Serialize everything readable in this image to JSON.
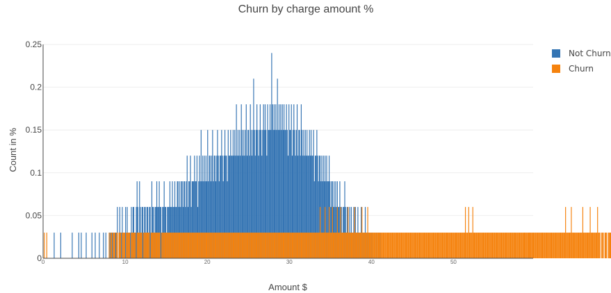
{
  "chart_data": {
    "type": "bar",
    "title": "Churn by charge amount %",
    "xlabel": "Amount $",
    "ylabel": "Count in %",
    "xlim": [
      0,
      59.7
    ],
    "ylim": [
      0,
      0.25
    ],
    "x_ticks": [
      "0",
      "10",
      "20",
      "30",
      "40",
      "50"
    ],
    "y_ticks": [
      "0",
      "0.05",
      "0.1",
      "0.15",
      "0.2",
      "0.25"
    ],
    "grid": true,
    "legend_position": "top-right",
    "bin_width": 0.1,
    "series": [
      {
        "name": "Not Churn",
        "color": "#3474b3",
        "start": 8.0,
        "values": [
          0.03,
          0.03,
          0,
          0.03,
          0.03,
          0.03,
          0,
          0.03,
          0.03,
          0.03,
          0.06,
          0,
          0.03,
          0.06,
          0.03,
          0.03,
          0.06,
          0.03,
          0,
          0.03,
          0.06,
          0.03,
          0.06,
          0.03,
          0,
          0.03,
          0.03,
          0.06,
          0.03,
          0.06,
          0.06,
          0.03,
          0.03,
          0.06,
          0.09,
          0.06,
          0.03,
          0.09,
          0.06,
          0.03,
          0.06,
          0.06,
          0.03,
          0.06,
          0.06,
          0.03,
          0.06,
          0.06,
          0.03,
          0.06,
          0.06,
          0.03,
          0.09,
          0.06,
          0.06,
          0.03,
          0.06,
          0.06,
          0.09,
          0.06,
          0.06,
          0.09,
          0.06,
          0.06,
          0.03,
          0.06,
          0.06,
          0.09,
          0.06,
          0.06,
          0.03,
          0.06,
          0.06,
          0.06,
          0.09,
          0.06,
          0.06,
          0.09,
          0.06,
          0.06,
          0.09,
          0.06,
          0.06,
          0.09,
          0.09,
          0.06,
          0.09,
          0.06,
          0.09,
          0.09,
          0.06,
          0.09,
          0.09,
          0.06,
          0.09,
          0.12,
          0.06,
          0.09,
          0.09,
          0.12,
          0.06,
          0.09,
          0.09,
          0.09,
          0.12,
          0.09,
          0.09,
          0.12,
          0.06,
          0.09,
          0.12,
          0.09,
          0.15,
          0.09,
          0.12,
          0.09,
          0.12,
          0.09,
          0.12,
          0.09,
          0.15,
          0.09,
          0.12,
          0.12,
          0.09,
          0.12,
          0.15,
          0.09,
          0.12,
          0.12,
          0.09,
          0.12,
          0.15,
          0.12,
          0.09,
          0.12,
          0.12,
          0.15,
          0.12,
          0.09,
          0.12,
          0.15,
          0.12,
          0.12,
          0.09,
          0.15,
          0.12,
          0.12,
          0.15,
          0.12,
          0.12,
          0.15,
          0.12,
          0.15,
          0.12,
          0.18,
          0.12,
          0.15,
          0.12,
          0.15,
          0.12,
          0.18,
          0.15,
          0.12,
          0.15,
          0.12,
          0.15,
          0.18,
          0.12,
          0.15,
          0.15,
          0.12,
          0.18,
          0.15,
          0.12,
          0.15,
          0.21,
          0.15,
          0.12,
          0.15,
          0.18,
          0.15,
          0.12,
          0.15,
          0.18,
          0.15,
          0.12,
          0.15,
          0.18,
          0.15,
          0.18,
          0.15,
          0.12,
          0.18,
          0.15,
          0.15,
          0.18,
          0.15,
          0.24,
          0.18,
          0.15,
          0.18,
          0.15,
          0.18,
          0.15,
          0.21,
          0.15,
          0.18,
          0.15,
          0.18,
          0.15,
          0.18,
          0.15,
          0.18,
          0.15,
          0.15,
          0.18,
          0.15,
          0.12,
          0.18,
          0.15,
          0.15,
          0.18,
          0.12,
          0.15,
          0.18,
          0.15,
          0.12,
          0.15,
          0.18,
          0.12,
          0.15,
          0.15,
          0.12,
          0.18,
          0.15,
          0.12,
          0.15,
          0.12,
          0.15,
          0.12,
          0.15,
          0.12,
          0.12,
          0.15,
          0.12,
          0.15,
          0.12,
          0.12,
          0.15,
          0.09,
          0.12,
          0.12,
          0.15,
          0.12,
          0.09,
          0.12,
          0.12,
          0.09,
          0.12,
          0.09,
          0.12,
          0.09,
          0.12,
          0.09,
          0.12,
          0.09,
          0.09,
          0.12,
          0.09,
          0.06,
          0.09,
          0.09,
          0.06,
          0.09,
          0.06,
          0.09,
          0.06,
          0.09,
          0.06,
          0.06,
          0.09,
          0.06,
          0.06,
          0.03,
          0.06,
          0.06,
          0.09,
          0.06,
          0.03,
          0.06,
          0.06,
          0.03,
          0.06,
          0.03,
          0.06,
          0.03,
          0.03,
          0.06,
          0.03,
          0.06,
          0.03,
          0.03,
          0.06,
          0.03,
          0.03,
          0.03,
          0.06,
          0.03,
          0.03,
          0.03,
          0.03,
          0.06,
          0.03,
          0.03,
          0.03,
          0.03,
          0.03,
          0,
          0.03,
          0.03,
          0.03,
          0,
          0.03,
          0,
          0.03,
          0.03,
          0,
          0.03,
          0,
          0.03
        ]
      },
      {
        "name": "Churn",
        "color": "#f5820d",
        "start": 8.0,
        "values": [
          0.03,
          0,
          0.03,
          0.03,
          0,
          0.03,
          0.03,
          0.03,
          0,
          0.03,
          0.03,
          0,
          0.03,
          0.03,
          0.03,
          0,
          0.03,
          0.03,
          0.03,
          0.03,
          0,
          0.03,
          0.03,
          0.03,
          0.03,
          0.03,
          0,
          0.03,
          0.03,
          0.03,
          0.03,
          0.03,
          0.03,
          0,
          0.03,
          0.03,
          0.03,
          0.03,
          0.03,
          0.03,
          0.03,
          0,
          0.03,
          0.03,
          0.03,
          0.03,
          0.03,
          0.03,
          0.03,
          0.03,
          0,
          0.03,
          0.03,
          0.03,
          0.03,
          0.03,
          0.03,
          0.03,
          0.03,
          0.03,
          0.03,
          0.03,
          0.03,
          0,
          0.03,
          0.03,
          0.03,
          0.03,
          0.03,
          0.03,
          0.03,
          0.03,
          0.03,
          0.03,
          0.03,
          0.03,
          0.03,
          0.03,
          0.03,
          0.03,
          0.03,
          0.03,
          0.03,
          0.03,
          0.03,
          0.03,
          0.03,
          0.03,
          0.03,
          0.03,
          0.03,
          0.03,
          0.03,
          0.03,
          0.03,
          0.03,
          0.03,
          0.03,
          0.03,
          0.03,
          0.03,
          0.03,
          0.03,
          0.03,
          0.03,
          0.03,
          0.03,
          0.03,
          0.03,
          0.03,
          0.03,
          0.03,
          0.03,
          0.03,
          0.03,
          0.03,
          0.03,
          0.03,
          0.03,
          0.03,
          0.03,
          0.03,
          0.03,
          0.03,
          0.03,
          0.03,
          0.03,
          0.03,
          0.03,
          0.03,
          0.03,
          0.03,
          0.03,
          0.03,
          0.03,
          0.03,
          0.03,
          0.03,
          0.03,
          0.03,
          0.03,
          0.03,
          0.03,
          0.03,
          0.03,
          0.03,
          0.03,
          0.03,
          0.03,
          0.03,
          0.03,
          0.03,
          0.03,
          0.03,
          0.03,
          0.03,
          0.03,
          0.03,
          0.03,
          0.03,
          0.03,
          0.03,
          0.03,
          0.03,
          0.03,
          0.03,
          0.03,
          0.03,
          0.03,
          0.03,
          0.03,
          0.03,
          0.03,
          0.03,
          0.03,
          0.03,
          0.03,
          0.03,
          0.03,
          0.03,
          0.03,
          0.03,
          0.03,
          0.03,
          0.03,
          0.03,
          0.03,
          0.03,
          0.03,
          0.03,
          0.03,
          0.03,
          0.03,
          0.03,
          0.03,
          0.03,
          0.03,
          0.03,
          0.03,
          0.03,
          0.03,
          0.03,
          0.03,
          0.03,
          0.03,
          0.03,
          0.03,
          0.03,
          0.03,
          0.03,
          0.03,
          0.03,
          0.03,
          0.03,
          0.03,
          0.03,
          0.03,
          0.03,
          0.03,
          0.03,
          0.03,
          0.03,
          0.03,
          0.03,
          0.03,
          0.03,
          0.03,
          0.03,
          0.03,
          0.03,
          0.03,
          0.03,
          0.03,
          0.03,
          0.03,
          0.03,
          0.03,
          0.03,
          0.03,
          0.03,
          0.03,
          0.03,
          0.03,
          0.03,
          0.03,
          0.03,
          0.03,
          0.03,
          0.03,
          0.03,
          0.03,
          0.03,
          0.03,
          0.03,
          0.03,
          0.03,
          0.03,
          0.06,
          0.03,
          0.03,
          0.03,
          0.03,
          0.03,
          0.06,
          0.03,
          0.03,
          0.03,
          0.03,
          0.06,
          0.03,
          0.03,
          0.03,
          0.06,
          0.03,
          0.03,
          0.03,
          0.03,
          0.03,
          0.06,
          0.03,
          0.03,
          0.03,
          0.06,
          0.03,
          0.03,
          0.03,
          0.03,
          0.03,
          0.03,
          0.03,
          0.03,
          0.06,
          0.03,
          0.03,
          0.03,
          0.03,
          0.03,
          0.03,
          0.03,
          0.06,
          0.03,
          0.03,
          0.03,
          0.03,
          0.03,
          0.03,
          0.03,
          0.03,
          0.06,
          0.03,
          0.03,
          0.03,
          0.03,
          0.03,
          0.03,
          0.06,
          0.03,
          0.03,
          0.03,
          0.03,
          0.03,
          0.03,
          0.03,
          0.03,
          0.03,
          0.03,
          0.03,
          0.03,
          0.03,
          0.03,
          0.03,
          0.03,
          0.03,
          0.03,
          0.03,
          0.03,
          0.03,
          0.03,
          0.03,
          0.03,
          0.03,
          0.03,
          0.03,
          0.03,
          0.03,
          0.03,
          0.03,
          0.03,
          0.03,
          0.03,
          0.03,
          0.03,
          0.03,
          0.03,
          0.03,
          0.03,
          0.03,
          0.03,
          0.03,
          0.03,
          0.03,
          0.03,
          0.03,
          0.03,
          0.03,
          0.03,
          0.03,
          0.03,
          0.03,
          0.03,
          0.03,
          0.03,
          0.03,
          0.03,
          0.03,
          0.03,
          0.03,
          0.03,
          0.03,
          0.03,
          0.03,
          0.03,
          0.03,
          0.03,
          0.03,
          0.03,
          0.03,
          0.03,
          0.03,
          0.03,
          0.03,
          0.03,
          0.03,
          0.03,
          0.03,
          0.03,
          0.03,
          0.03,
          0.03,
          0.03,
          0.03,
          0.03,
          0.03,
          0.03,
          0.03,
          0.03,
          0.03,
          0.03,
          0.03,
          0.03,
          0.03,
          0.03,
          0.03,
          0.03,
          0.03,
          0.03,
          0.03,
          0.03,
          0.03,
          0.03,
          0.03,
          0.03,
          0.03,
          0.03,
          0.03,
          0.03,
          0.03,
          0.03,
          0.03,
          0.03,
          0.03,
          0.03,
          0.03,
          0.03,
          0.06,
          0.03,
          0.03,
          0.03,
          0.06,
          0.03,
          0.03,
          0.03,
          0.03,
          0.06,
          0.03,
          0.03,
          0.03,
          0.03,
          0.03,
          0.03,
          0.03,
          0.03,
          0.03,
          0.03,
          0.03,
          0.03,
          0.03,
          0.03,
          0.03,
          0.03,
          0.03,
          0.03,
          0.03,
          0.03,
          0.03,
          0.03,
          0.03,
          0.03,
          0.03,
          0.03,
          0.03,
          0.03,
          0.03,
          0.03,
          0.03,
          0.03,
          0.03,
          0.03,
          0.03,
          0.03,
          0.03,
          0.03,
          0.03,
          0.03,
          0.03,
          0.03,
          0.03,
          0.03,
          0.03,
          0.03,
          0.03,
          0.03,
          0.03,
          0.03,
          0.03,
          0.03,
          0.03,
          0.03,
          0.03,
          0.03,
          0.03,
          0.03,
          0.03,
          0.03,
          0.03,
          0.03,
          0.03,
          0.03,
          0.03,
          0.03,
          0.03,
          0.03,
          0.03,
          0.03,
          0.03,
          0.03,
          0.03,
          0.03,
          0.03,
          0.03,
          0.03,
          0.03,
          0.03,
          0.03,
          0.03,
          0.03,
          0.03,
          0.03,
          0.03,
          0.03,
          0.03,
          0.03,
          0.03,
          0.03,
          0.03,
          0.03,
          0.03,
          0.03,
          0.03,
          0.03,
          0.03,
          0.03,
          0.03,
          0.03,
          0.03,
          0.03,
          0.03,
          0.03,
          0.03,
          0.03,
          0.03,
          0.03,
          0.03,
          0.03,
          0.03,
          0.03,
          0.06,
          0.03,
          0.03,
          0.03,
          0.03,
          0.03,
          0.03,
          0.06,
          0.03,
          0.03,
          0.03,
          0.03,
          0.03,
          0.03,
          0.03,
          0.03,
          0.03,
          0.03,
          0.03,
          0.03,
          0.03,
          0.06,
          0.03,
          0.03,
          0.03,
          0.03,
          0.03,
          0.03,
          0.03,
          0.03,
          0.06,
          0.03,
          0.03,
          0.03,
          0.03,
          0.03,
          0.03,
          0.03,
          0.03,
          0.06,
          0.03,
          0.03,
          0.03,
          0,
          0.03,
          0.03,
          0.03,
          0,
          0.03,
          0.03,
          0.03,
          0,
          0.03,
          0.03,
          0.03,
          0.03,
          0,
          0.03,
          0.03,
          0.03,
          0.06,
          0,
          0.03,
          0.03,
          0.03,
          0.03,
          0,
          0.03,
          0.03,
          0.03,
          0,
          0.03,
          0.03,
          0,
          0.03,
          0,
          0.03,
          0.03,
          0,
          0.03,
          0.03,
          0,
          0.06,
          0.03,
          0,
          0.03,
          0,
          0.03,
          0,
          0.03,
          0,
          0.03,
          0.03,
          0,
          0.03,
          0,
          0.03,
          0,
          0.03,
          0,
          0.03,
          0,
          0,
          0.03,
          0,
          0.03,
          0,
          0,
          0.03,
          0,
          0,
          0.03,
          0,
          0.03,
          0,
          0,
          0.03,
          0,
          0,
          0.03,
          0,
          0,
          0.03,
          0,
          0,
          0,
          0.03,
          0,
          0.03
        ]
      }
    ],
    "extra_bars": [
      {
        "x": 0.1,
        "y": 0.03,
        "series": "Churn"
      },
      {
        "x": 0.4,
        "y": 0.03,
        "series": "Churn"
      },
      {
        "x": 1.3,
        "y": 0.03,
        "series": "Not Churn"
      },
      {
        "x": 2.1,
        "y": 0.03,
        "series": "Not Churn"
      },
      {
        "x": 3.5,
        "y": 0.03,
        "series": "Not Churn"
      },
      {
        "x": 4.3,
        "y": 0.03,
        "series": "Not Churn"
      },
      {
        "x": 4.6,
        "y": 0.03,
        "series": "Not Churn"
      },
      {
        "x": 5.2,
        "y": 0.03,
        "series": "Not Churn"
      },
      {
        "x": 5.9,
        "y": 0.03,
        "series": "Not Churn"
      },
      {
        "x": 6.3,
        "y": 0.03,
        "series": "Not Churn"
      },
      {
        "x": 6.8,
        "y": 0.03,
        "series": "Not Churn"
      },
      {
        "x": 7.3,
        "y": 0.03,
        "series": "Not Churn"
      },
      {
        "x": 7.6,
        "y": 0.03,
        "series": "Not Churn"
      },
      {
        "x": 58.6,
        "y": 0.03,
        "series": "Churn"
      },
      {
        "x": 59.2,
        "y": 0.03,
        "series": "Churn"
      }
    ]
  }
}
